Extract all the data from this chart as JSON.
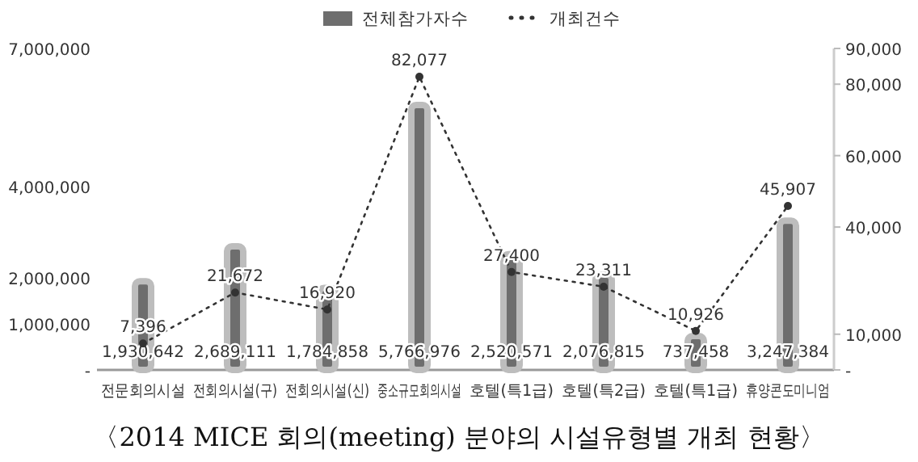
{
  "chart_data": {
    "type": "bar",
    "title": "〈2014 MICE 회의(meeting) 분야의 시설유형별 개최 현황〉",
    "categories": [
      "전문회의시설",
      "전회의시설(구)",
      "전회의시설(신)",
      "중소규모회의시설",
      "호텔(특1급)",
      "호텔(특2급)",
      "호텔(특1급)",
      "휴양콘도미니엄"
    ],
    "series": [
      {
        "name": "전체참가자수",
        "color": "#6e6e6e",
        "values": [
          1930642,
          2689111,
          1784858,
          5766976,
          2520571,
          2076815,
          737458,
          3247384
        ],
        "value_labels": [
          "1,930,642",
          "2,689,111",
          "1,784,858",
          "5,766,976",
          "2,520,571",
          "2,076,815",
          "737,458",
          "3,247,384"
        ]
      },
      {
        "name": "개최건수",
        "type": "line",
        "axis": "y2",
        "color": "#333333",
        "values": [
          7396,
          21672,
          16920,
          82077,
          27400,
          23311,
          10926,
          45907
        ],
        "value_labels": [
          "7,396",
          "21,672",
          "16,920",
          "82,077",
          "27,400",
          "23,311",
          "10,926",
          "45,907"
        ]
      }
    ],
    "ylim": [
      0,
      7000000
    ],
    "yticks": [
      {
        "value": 0,
        "label": "-"
      },
      {
        "value": 1000000,
        "label": "1,000,000"
      },
      {
        "value": 2000000,
        "label": "2,000,000"
      },
      {
        "value": 4000000,
        "label": "4,000,000"
      },
      {
        "value": 7000000,
        "label": "7,000,000"
      }
    ],
    "y2lim": [
      0,
      90000
    ],
    "y2ticks": [
      {
        "value": 0,
        "label": "-"
      },
      {
        "value": 10000,
        "label": "10,000"
      },
      {
        "value": 40000,
        "label": "40,000"
      },
      {
        "value": 60000,
        "label": "60,000"
      },
      {
        "value": 80000,
        "label": "80,000"
      },
      {
        "value": 90000,
        "label": "90,000"
      }
    ],
    "legend": "top",
    "marker": "circle",
    "line_style": "dotted"
  }
}
